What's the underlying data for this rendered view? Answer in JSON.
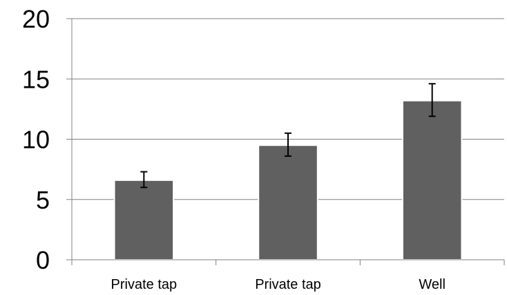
{
  "chart_data": {
    "type": "bar",
    "title": "",
    "xlabel": "",
    "ylabel": "",
    "categories": [
      "Private tap",
      "Private tap",
      "Well"
    ],
    "values": [
      6.6,
      9.5,
      13.2
    ],
    "error_low": [
      6.0,
      8.6,
      11.9
    ],
    "error_high": [
      7.3,
      10.5,
      14.6
    ],
    "ylim": [
      0,
      20
    ],
    "yticks": [
      "0",
      "5",
      "10",
      "15",
      "20"
    ],
    "grid": "horizontal",
    "legend": "none",
    "colors": {
      "bar": "#606060",
      "bar_outline": "#ffffff",
      "grid": "#808080",
      "axis": "#808080",
      "error_bar": "#000000"
    }
  }
}
